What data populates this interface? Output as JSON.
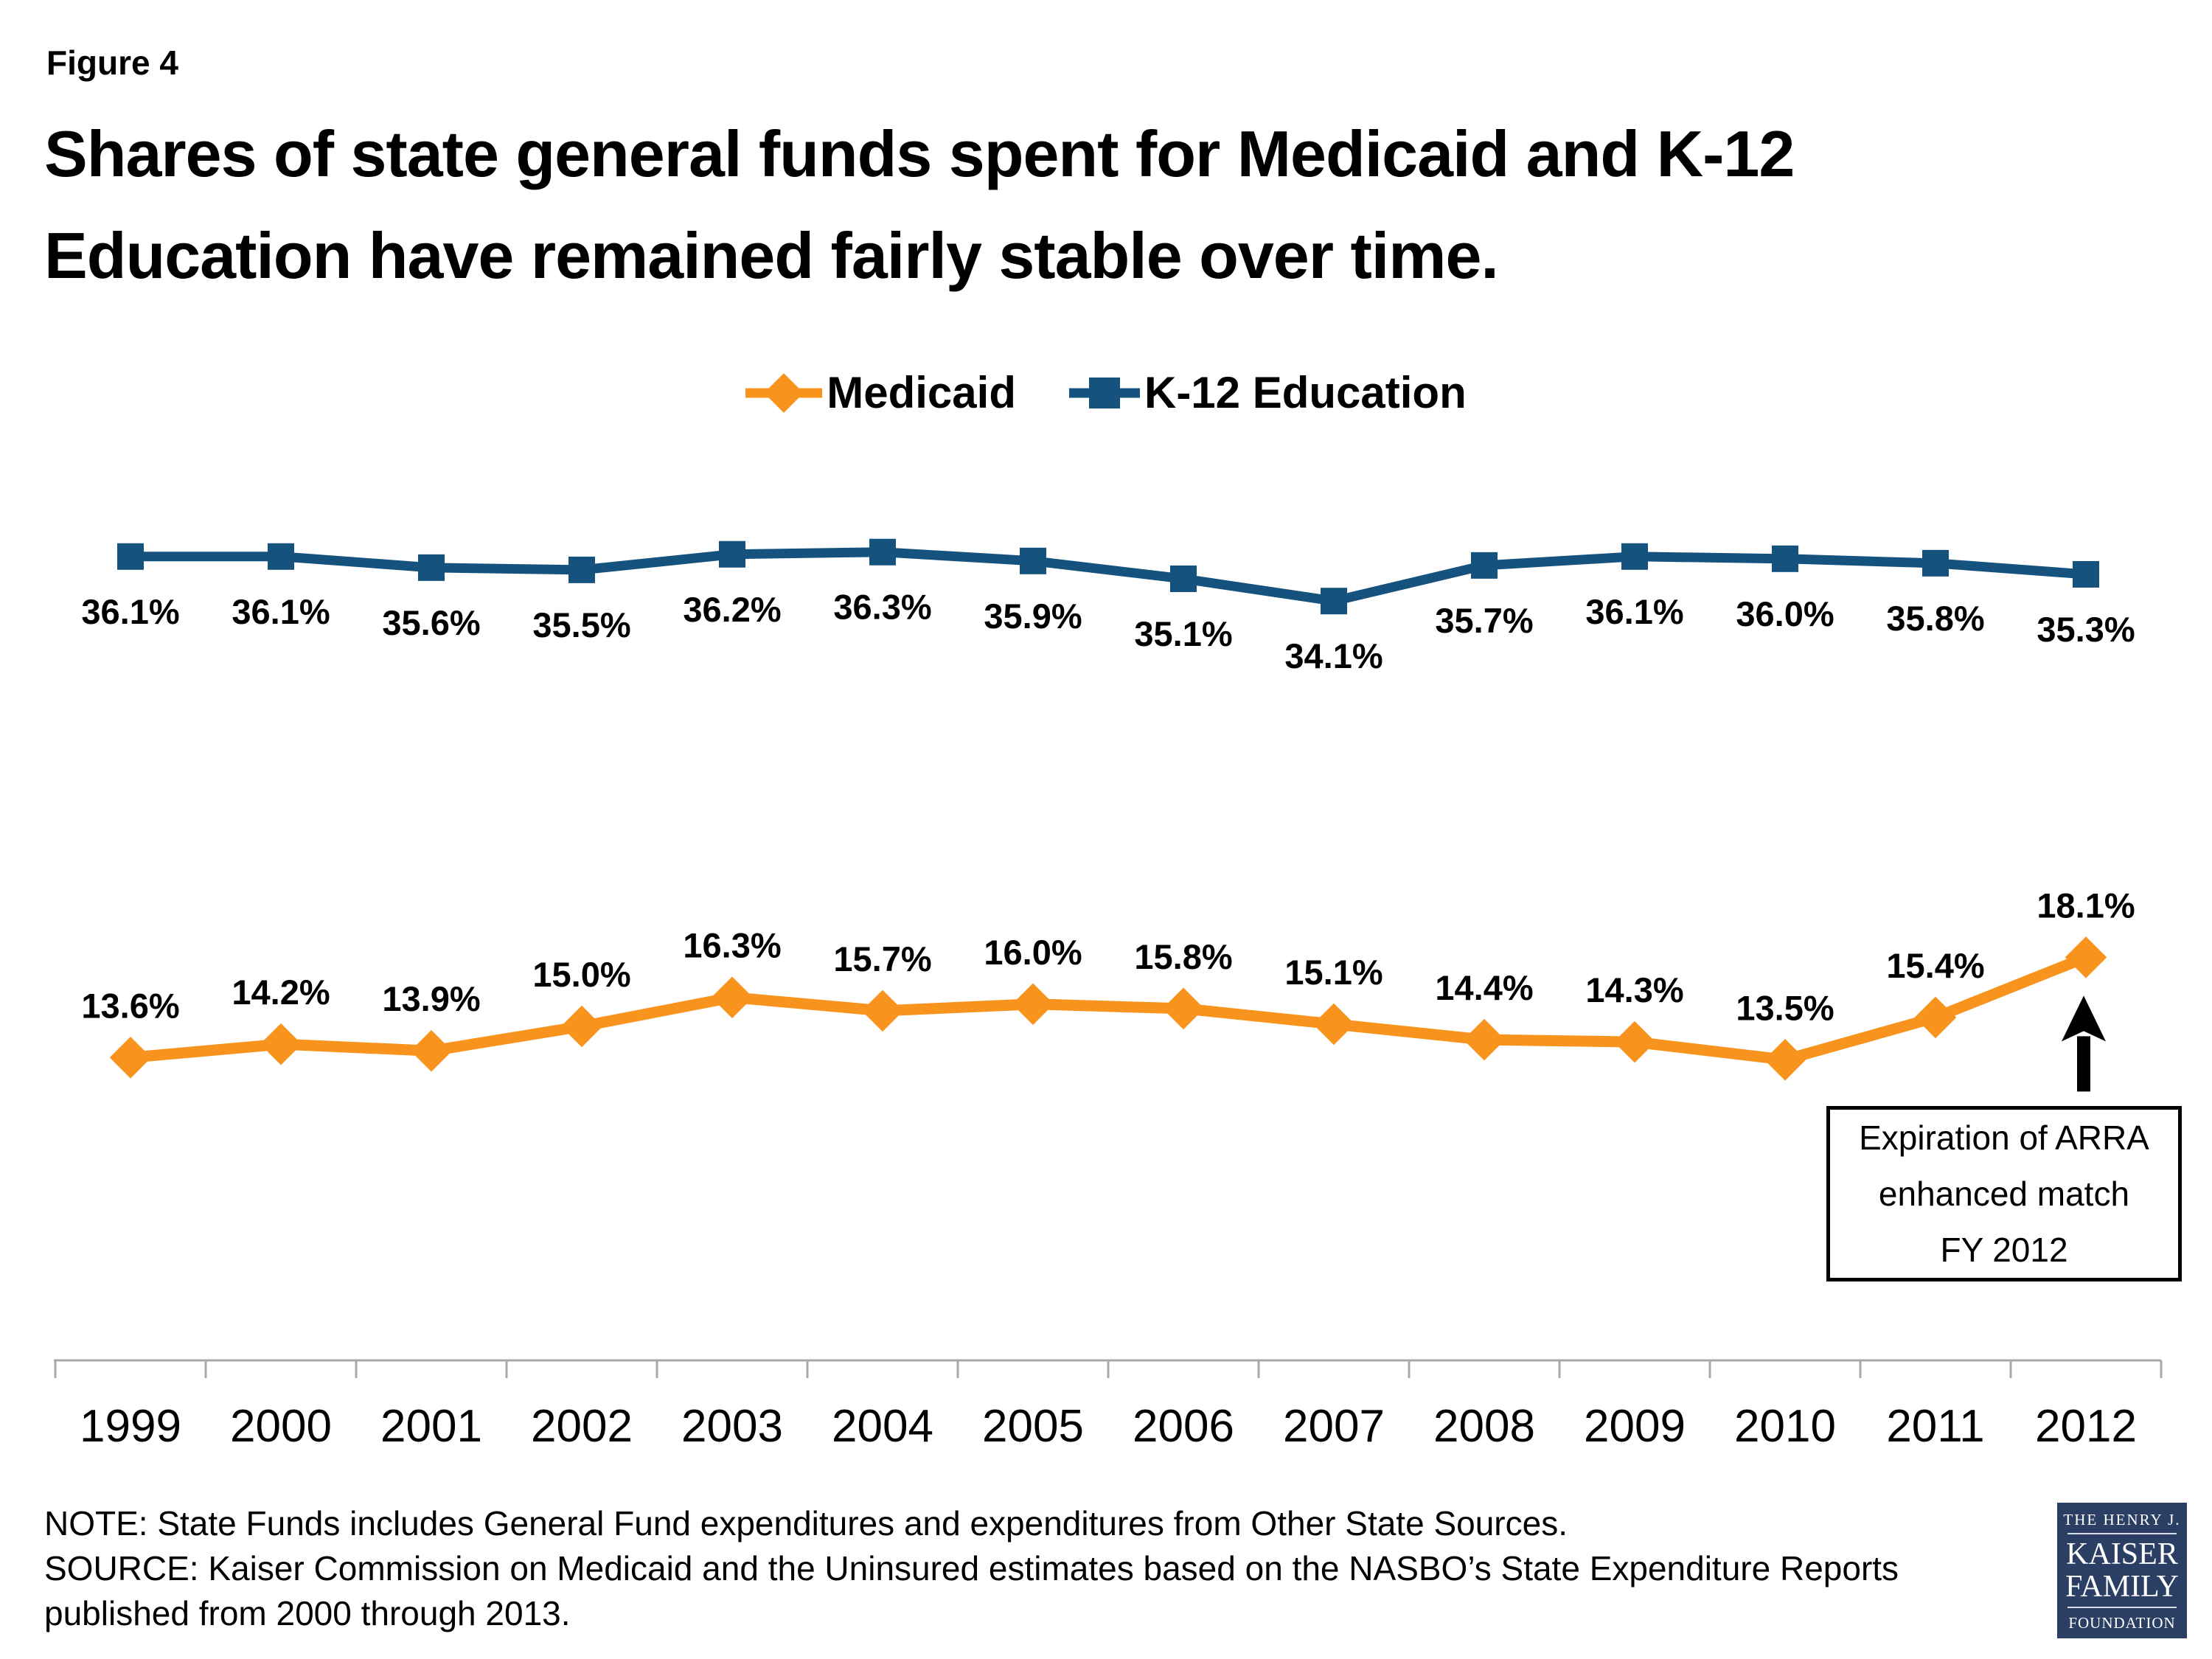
{
  "figure_label": "Figure 4",
  "title_line1": "Shares of state general funds spent for Medicaid and K-12",
  "title_line2": "Education have remained fairly stable over time.",
  "legend": {
    "medicaid_label": "Medicaid",
    "k12_label": "K-12 Education"
  },
  "colors": {
    "medicaid": "#F8941E",
    "k12": "#16527E",
    "axis": "#A8A8A8",
    "text": "#000000",
    "arrow": "#000000",
    "logo_bg": "#2B3E63"
  },
  "chart_data": {
    "type": "line",
    "categories": [
      "1999",
      "2000",
      "2001",
      "2002",
      "2003",
      "2004",
      "2005",
      "2006",
      "2007",
      "2008",
      "2009",
      "2010",
      "2011",
      "2012"
    ],
    "series": [
      {
        "name": "K-12 Education",
        "color_key": "k12",
        "marker": "square",
        "label_position": "below",
        "values": [
          36.1,
          36.1,
          35.6,
          35.5,
          36.2,
          36.3,
          35.9,
          35.1,
          34.1,
          35.7,
          36.1,
          36.0,
          35.8,
          35.3
        ],
        "labels": [
          "36.1%",
          "36.1%",
          "35.6%",
          "35.5%",
          "36.2%",
          "36.3%",
          "35.9%",
          "35.1%",
          "34.1%",
          "35.7%",
          "36.1%",
          "36.0%",
          "35.8%",
          "35.3%"
        ]
      },
      {
        "name": "Medicaid",
        "color_key": "medicaid",
        "marker": "diamond",
        "label_position": "above",
        "values": [
          13.6,
          14.2,
          13.9,
          15.0,
          16.3,
          15.7,
          16.0,
          15.8,
          15.1,
          14.4,
          14.3,
          13.5,
          15.4,
          18.1
        ],
        "labels": [
          "13.6%",
          "14.2%",
          "13.9%",
          "15.0%",
          "16.3%",
          "15.7%",
          "16.0%",
          "15.8%",
          "15.1%",
          "14.4%",
          "14.3%",
          "13.5%",
          "15.4%",
          "18.1%"
        ]
      }
    ],
    "ylim": [
      0,
      40
    ],
    "grid": false,
    "legend_position": "top",
    "annotation_target": {
      "category": "2012",
      "series": "Medicaid",
      "value": 18.1
    }
  },
  "annotation": {
    "line1": "Expiration of ARRA",
    "line2": "enhanced match",
    "line3": "FY 2012"
  },
  "notes": {
    "note": "NOTE: State Funds includes General Fund expenditures and expenditures from Other State Sources.",
    "source": "SOURCE: Kaiser Commission on Medicaid and the Uninsured estimates based on the NASBO’s State Expenditure Reports published from 2000 through 2013."
  },
  "logo": {
    "line1": "THE HENRY J.",
    "line2": "KAISER",
    "line3": "FAMILY",
    "line4": "FOUNDATION"
  }
}
